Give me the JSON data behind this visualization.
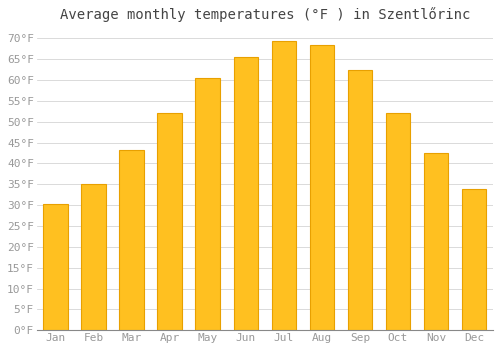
{
  "title": "Average monthly temperatures (°F ) in Szentlőrinc",
  "months": [
    "Jan",
    "Feb",
    "Mar",
    "Apr",
    "May",
    "Jun",
    "Jul",
    "Aug",
    "Sep",
    "Oct",
    "Nov",
    "Dec"
  ],
  "values": [
    30.2,
    35.1,
    43.3,
    52.0,
    60.4,
    65.5,
    69.3,
    68.5,
    62.4,
    52.2,
    42.4,
    33.8
  ],
  "bar_color": "#FFC020",
  "bar_edge_color": "#E8A000",
  "ylim": [
    0,
    72
  ],
  "yticks": [
    0,
    5,
    10,
    15,
    20,
    25,
    30,
    35,
    40,
    45,
    50,
    55,
    60,
    65,
    70
  ],
  "background_color": "#FFFFFF",
  "plot_bg_color": "#FFFFFF",
  "grid_color": "#CCCCCC",
  "title_fontsize": 10,
  "tick_fontsize": 8,
  "tick_color": "#999999",
  "title_color": "#444444",
  "font_family": "monospace",
  "bar_width": 0.65
}
